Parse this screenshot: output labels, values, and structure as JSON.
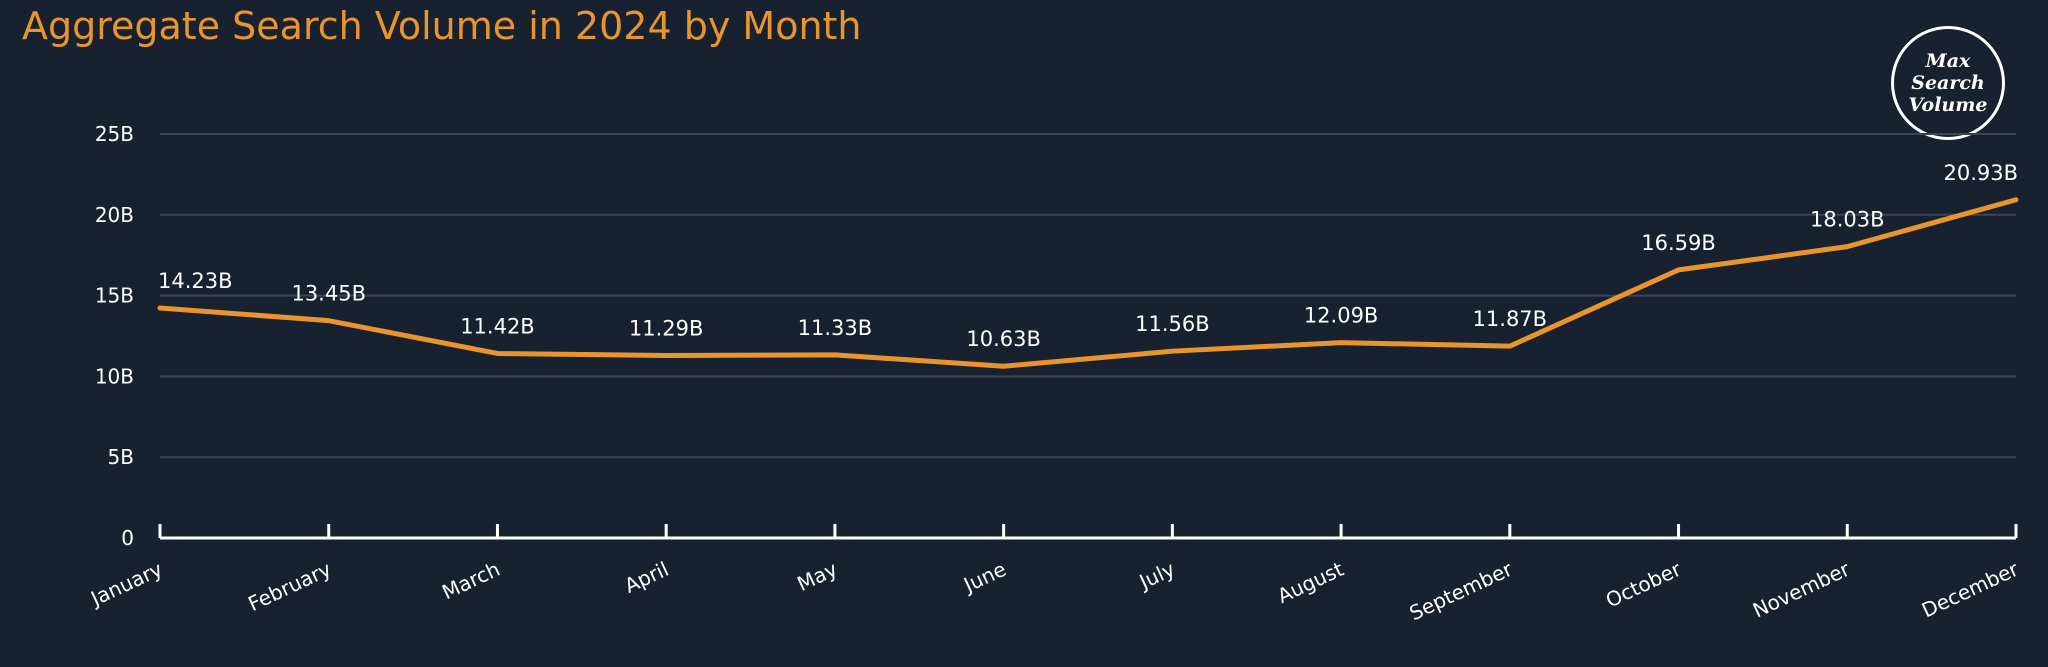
{
  "title": "Aggregate Search Volume in 2024 by Month",
  "logo_text": "Max Search Volume",
  "colors": {
    "background": "#18212f",
    "title": "#e8952e",
    "line": "#e8952e",
    "grid": "#3a4556",
    "axis": "#ffffff",
    "text": "#ffffff"
  },
  "chart_data": {
    "type": "line",
    "title": "Aggregate Search Volume in 2024 by Month",
    "xlabel": "",
    "ylabel": "",
    "categories": [
      "January",
      "February",
      "March",
      "April",
      "May",
      "June",
      "July",
      "August",
      "September",
      "October",
      "November",
      "December"
    ],
    "series": [
      {
        "values": [
          14.23,
          13.45,
          11.42,
          11.29,
          11.33,
          10.63,
          11.56,
          12.09,
          11.87,
          16.59,
          18.03,
          20.93
        ],
        "labels": [
          "14.23B",
          "13.45B",
          "11.42B",
          "11.29B",
          "11.33B",
          "10.63B",
          "11.56B",
          "12.09B",
          "11.87B",
          "16.59B",
          "18.03B",
          "20.93B"
        ]
      }
    ],
    "ylim": [
      0,
      25
    ],
    "yticks": [
      0,
      5,
      10,
      15,
      20,
      25
    ],
    "ytick_labels": [
      "0",
      "5B",
      "10B",
      "15B",
      "20B",
      "25B"
    ],
    "grid": true,
    "legend": "none"
  }
}
